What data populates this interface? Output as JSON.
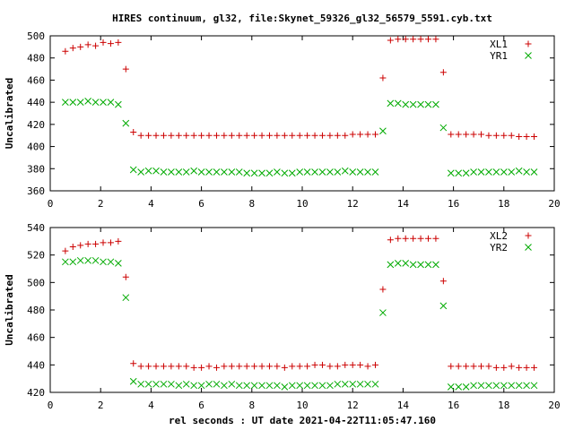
{
  "title": "HIRES continuum, gl32, file:Skynet_59326_gl32_56579_5591.cyb.txt",
  "xlabel": "rel seconds : UT date 2021-04-22T11:05:47.160",
  "colors": {
    "red": "#cc0000",
    "green": "#00aa00",
    "axis": "#000000"
  },
  "chart_data": [
    {
      "type": "scatter",
      "ylabel": "Uncalibrated",
      "xlim": [
        0,
        20
      ],
      "ylim": [
        360,
        500
      ],
      "xticks": [
        "0",
        "2",
        "4",
        "6",
        "8",
        "10",
        "12",
        "14",
        "16",
        "18",
        "20"
      ],
      "yticks": [
        "360",
        "380",
        "400",
        "420",
        "440",
        "460",
        "480",
        "500"
      ],
      "legend_position": "top-right",
      "grid": false,
      "series": [
        {
          "name": "XL1",
          "marker": "plus",
          "color": "#cc0000",
          "x": [
            0.6,
            0.9,
            1.2,
            1.5,
            1.8,
            2.1,
            2.4,
            2.7,
            3.0,
            3.3,
            3.6,
            3.9,
            4.2,
            4.5,
            4.8,
            5.1,
            5.4,
            5.7,
            6.0,
            6.3,
            6.6,
            6.9,
            7.2,
            7.5,
            7.8,
            8.1,
            8.4,
            8.7,
            9.0,
            9.3,
            9.6,
            9.9,
            10.2,
            10.5,
            10.8,
            11.1,
            11.4,
            11.7,
            12.0,
            12.3,
            12.6,
            12.9,
            13.2,
            13.5,
            13.8,
            14.1,
            14.4,
            14.7,
            15.0,
            15.3,
            15.6,
            15.9,
            16.2,
            16.5,
            16.8,
            17.1,
            17.4,
            17.7,
            18.0,
            18.3,
            18.6,
            18.9,
            19.2
          ],
          "y": [
            486,
            489,
            490,
            492,
            491,
            494,
            493,
            494,
            470,
            413,
            410,
            410,
            410,
            410,
            410,
            410,
            410,
            410,
            410,
            410,
            410,
            410,
            410,
            410,
            410,
            410,
            410,
            410,
            410,
            410,
            410,
            410,
            410,
            410,
            410,
            410,
            410,
            410,
            411,
            411,
            411,
            411,
            462,
            496,
            497,
            497,
            497,
            497,
            497,
            497,
            467,
            411,
            411,
            411,
            411,
            411,
            410,
            410,
            410,
            410,
            409,
            409,
            409
          ]
        },
        {
          "name": "YR1",
          "marker": "cross",
          "color": "#00aa00",
          "x": [
            0.6,
            0.9,
            1.2,
            1.5,
            1.8,
            2.1,
            2.4,
            2.7,
            3.0,
            3.3,
            3.6,
            3.9,
            4.2,
            4.5,
            4.8,
            5.1,
            5.4,
            5.7,
            6.0,
            6.3,
            6.6,
            6.9,
            7.2,
            7.5,
            7.8,
            8.1,
            8.4,
            8.7,
            9.0,
            9.3,
            9.6,
            9.9,
            10.2,
            10.5,
            10.8,
            11.1,
            11.4,
            11.7,
            12.0,
            12.3,
            12.6,
            12.9,
            13.2,
            13.5,
            13.8,
            14.1,
            14.4,
            14.7,
            15.0,
            15.3,
            15.6,
            15.9,
            16.2,
            16.5,
            16.8,
            17.1,
            17.4,
            17.7,
            18.0,
            18.3,
            18.6,
            18.9,
            19.2
          ],
          "y": [
            440,
            440,
            440,
            441,
            440,
            440,
            440,
            438,
            421,
            379,
            377,
            378,
            378,
            377,
            377,
            377,
            377,
            378,
            377,
            377,
            377,
            377,
            377,
            377,
            376,
            376,
            376,
            376,
            377,
            376,
            376,
            377,
            377,
            377,
            377,
            377,
            377,
            378,
            377,
            377,
            377,
            377,
            414,
            439,
            439,
            438,
            438,
            438,
            438,
            438,
            417,
            376,
            376,
            376,
            377,
            377,
            377,
            377,
            377,
            377,
            378,
            377,
            377
          ]
        }
      ]
    },
    {
      "type": "scatter",
      "ylabel": "Uncalibrated",
      "xlim": [
        0,
        20
      ],
      "ylim": [
        420,
        540
      ],
      "xticks": [
        "0",
        "2",
        "4",
        "6",
        "8",
        "10",
        "12",
        "14",
        "16",
        "18",
        "20"
      ],
      "yticks": [
        "420",
        "440",
        "460",
        "480",
        "500",
        "520",
        "540"
      ],
      "legend_position": "top-right",
      "grid": false,
      "series": [
        {
          "name": "XL2",
          "marker": "plus",
          "color": "#cc0000",
          "x": [
            0.6,
            0.9,
            1.2,
            1.5,
            1.8,
            2.1,
            2.4,
            2.7,
            3.0,
            3.3,
            3.6,
            3.9,
            4.2,
            4.5,
            4.8,
            5.1,
            5.4,
            5.7,
            6.0,
            6.3,
            6.6,
            6.9,
            7.2,
            7.5,
            7.8,
            8.1,
            8.4,
            8.7,
            9.0,
            9.3,
            9.6,
            9.9,
            10.2,
            10.5,
            10.8,
            11.1,
            11.4,
            11.7,
            12.0,
            12.3,
            12.6,
            12.9,
            13.2,
            13.5,
            13.8,
            14.1,
            14.4,
            14.7,
            15.0,
            15.3,
            15.6,
            15.9,
            16.2,
            16.5,
            16.8,
            17.1,
            17.4,
            17.7,
            18.0,
            18.3,
            18.6,
            18.9,
            19.2
          ],
          "y": [
            523,
            526,
            527,
            528,
            528,
            529,
            529,
            530,
            504,
            441,
            439,
            439,
            439,
            439,
            439,
            439,
            439,
            438,
            438,
            439,
            438,
            439,
            439,
            439,
            439,
            439,
            439,
            439,
            439,
            438,
            439,
            439,
            439,
            440,
            440,
            439,
            439,
            440,
            440,
            440,
            439,
            440,
            495,
            531,
            532,
            532,
            532,
            532,
            532,
            532,
            501,
            439,
            439,
            439,
            439,
            439,
            439,
            438,
            438,
            439,
            438,
            438,
            438
          ]
        },
        {
          "name": "YR2",
          "marker": "cross",
          "color": "#00aa00",
          "x": [
            0.6,
            0.9,
            1.2,
            1.5,
            1.8,
            2.1,
            2.4,
            2.7,
            3.0,
            3.3,
            3.6,
            3.9,
            4.2,
            4.5,
            4.8,
            5.1,
            5.4,
            5.7,
            6.0,
            6.3,
            6.6,
            6.9,
            7.2,
            7.5,
            7.8,
            8.1,
            8.4,
            8.7,
            9.0,
            9.3,
            9.6,
            9.9,
            10.2,
            10.5,
            10.8,
            11.1,
            11.4,
            11.7,
            12.0,
            12.3,
            12.6,
            12.9,
            13.2,
            13.5,
            13.8,
            14.1,
            14.4,
            14.7,
            15.0,
            15.3,
            15.6,
            15.9,
            16.2,
            16.5,
            16.8,
            17.1,
            17.4,
            17.7,
            18.0,
            18.3,
            18.6,
            18.9,
            19.2
          ],
          "y": [
            515,
            515,
            516,
            516,
            516,
            515,
            515,
            514,
            489,
            428,
            426,
            426,
            426,
            426,
            426,
            425,
            426,
            425,
            425,
            426,
            426,
            425,
            426,
            425,
            425,
            425,
            425,
            425,
            425,
            424,
            425,
            425,
            425,
            425,
            425,
            425,
            426,
            426,
            426,
            426,
            426,
            426,
            478,
            513,
            514,
            514,
            513,
            513,
            513,
            513,
            483,
            424,
            424,
            424,
            425,
            425,
            425,
            425,
            425,
            425,
            425,
            425,
            425
          ]
        }
      ]
    }
  ]
}
